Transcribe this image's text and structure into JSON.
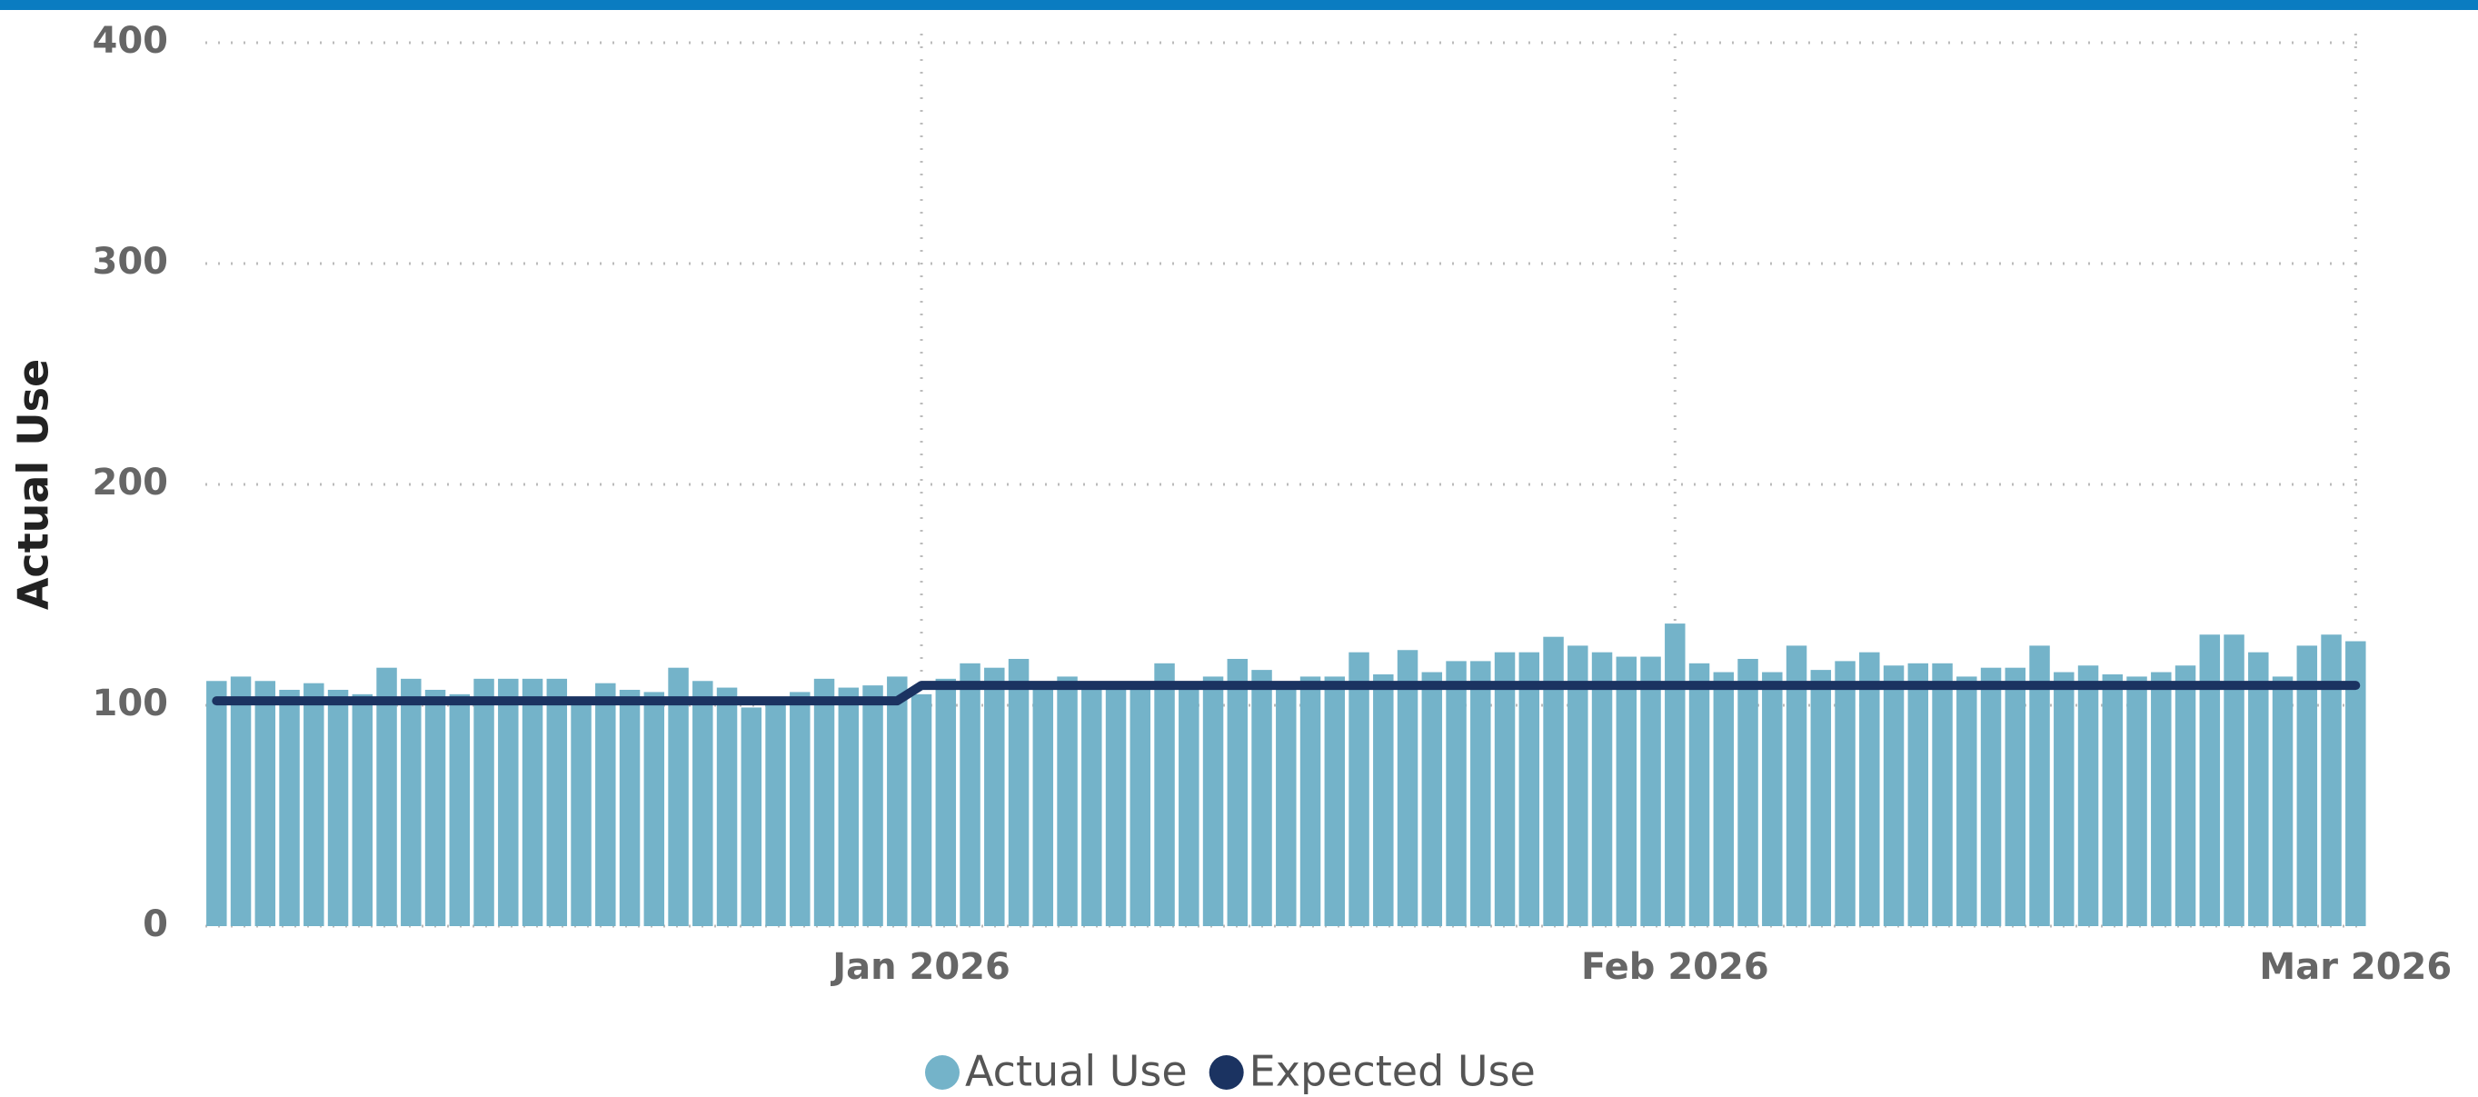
{
  "chart_data": {
    "type": "bar",
    "y_label": "Actual Use",
    "categories": [
      null,
      null,
      null,
      null,
      null,
      null,
      null,
      null,
      null,
      null,
      null,
      null,
      null,
      null,
      null,
      null,
      null,
      null,
      null,
      null,
      null,
      null,
      null,
      null,
      null,
      null,
      null,
      null,
      null,
      "Jan 2026",
      null,
      null,
      null,
      null,
      null,
      null,
      null,
      null,
      null,
      null,
      null,
      null,
      null,
      null,
      null,
      null,
      null,
      null,
      null,
      null,
      null,
      null,
      null,
      null,
      null,
      null,
      null,
      null,
      null,
      null,
      "Feb 2026",
      null,
      null,
      null,
      null,
      null,
      null,
      null,
      null,
      null,
      null,
      null,
      null,
      null,
      null,
      null,
      null,
      null,
      null,
      null,
      null,
      null,
      null,
      null,
      null,
      null,
      null,
      null,
      "Mar 2026"
    ],
    "series": [
      {
        "name": "Actual Use",
        "type": "bar",
        "color": "#74b3c9",
        "values": [
          111,
          113,
          111,
          107,
          110,
          107,
          105,
          117,
          112,
          107,
          105,
          112,
          112,
          112,
          112,
          101,
          110,
          107,
          106,
          117,
          111,
          108,
          99,
          100,
          106,
          112,
          108,
          109,
          113,
          105,
          112,
          119,
          117,
          121,
          109,
          113,
          109,
          109,
          109,
          119,
          109,
          113,
          121,
          116,
          109,
          113,
          113,
          124,
          114,
          125,
          115,
          120,
          120,
          124,
          124,
          131,
          127,
          124,
          122,
          122,
          137,
          119,
          115,
          121,
          115,
          127,
          116,
          120,
          124,
          118,
          119,
          119,
          113,
          117,
          117,
          127,
          115,
          118,
          114,
          113,
          115,
          118,
          132,
          132,
          124,
          113,
          127,
          132,
          129
        ]
      },
      {
        "name": "Expected Use",
        "type": "line",
        "color": "#1b3361",
        "values": [
          102,
          102,
          102,
          102,
          102,
          102,
          102,
          102,
          102,
          102,
          102,
          102,
          102,
          102,
          102,
          102,
          102,
          102,
          102,
          102,
          102,
          102,
          102,
          102,
          102,
          102,
          102,
          102,
          102,
          109,
          109,
          109,
          109,
          109,
          109,
          109,
          109,
          109,
          109,
          109,
          109,
          109,
          109,
          109,
          109,
          109,
          109,
          109,
          109,
          109,
          109,
          109,
          109,
          109,
          109,
          109,
          109,
          109,
          109,
          109,
          109,
          109,
          109,
          109,
          109,
          109,
          109,
          109,
          109,
          109,
          109,
          109,
          109,
          109,
          109,
          109,
          109,
          109,
          109,
          109,
          109,
          109,
          109,
          109,
          109,
          109,
          109,
          109,
          109
        ]
      }
    ],
    "ylim": [
      0,
      400
    ],
    "yticks": [
      0,
      100,
      200,
      300,
      400
    ],
    "grid": true,
    "legend": "bottom"
  }
}
